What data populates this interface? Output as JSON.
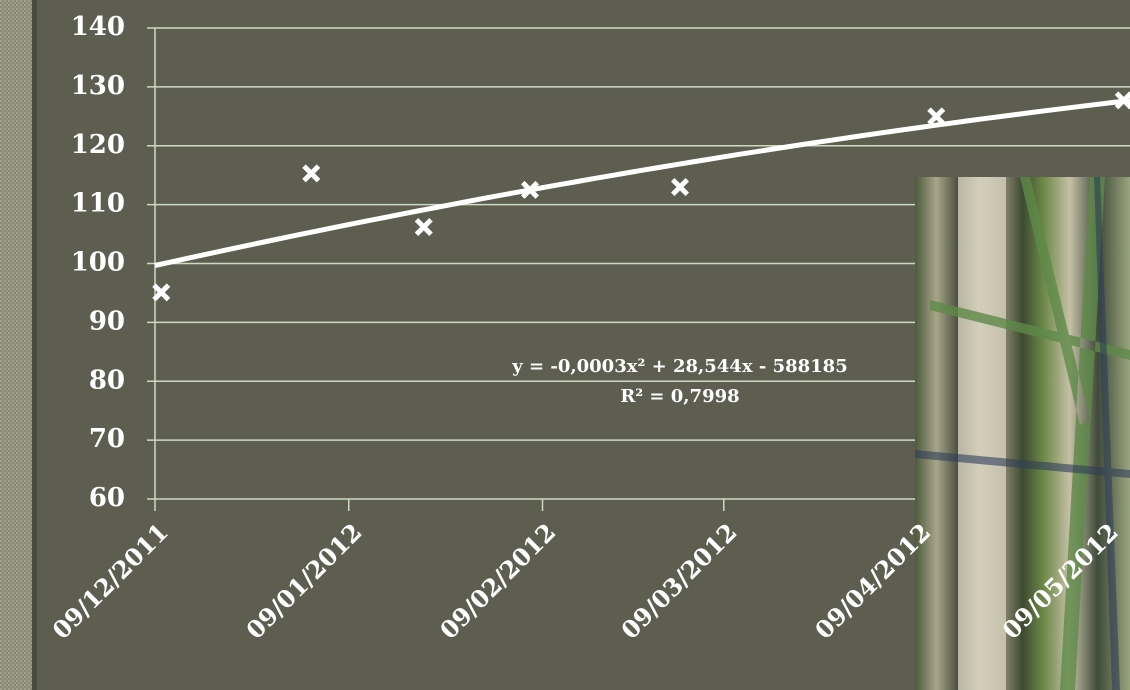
{
  "chart_data": {
    "type": "scatter",
    "x": [
      "2011-12-10",
      "2012-01-03",
      "2012-01-21",
      "2012-02-07",
      "2012-03-02",
      "2012-04-12",
      "2012-05-12"
    ],
    "series": [
      {
        "color": "#ffffff",
        "values": [
          95.1,
          115.3,
          106.2,
          112.5,
          113,
          125,
          127.7
        ]
      }
    ],
    "xlim": [
      "2011-12-09",
      "2012-05-13"
    ],
    "xticks": [
      {
        "value": "2011-12-09",
        "label": "09/12/2011"
      },
      {
        "value": "2012-01-09",
        "label": "09/01/2012"
      },
      {
        "value": "2012-02-09",
        "label": "09/02/2012"
      },
      {
        "value": "2012-03-09",
        "label": "09/03/2012"
      },
      {
        "value": "2012-04-09",
        "label": "09/04/2012"
      },
      {
        "value": "2012-05-09",
        "label": "09/05/2012"
      }
    ],
    "ylim": [
      60,
      140
    ],
    "yticks": [
      60,
      70,
      80,
      90,
      100,
      110,
      120,
      130,
      140
    ],
    "grid": true,
    "trendline": {
      "type": "polynomial",
      "order": 2,
      "color": "#ffffff"
    },
    "annotations": [
      "y = -0,0003x² + 28,544x - 588185",
      "R² = 0,7998"
    ]
  }
}
